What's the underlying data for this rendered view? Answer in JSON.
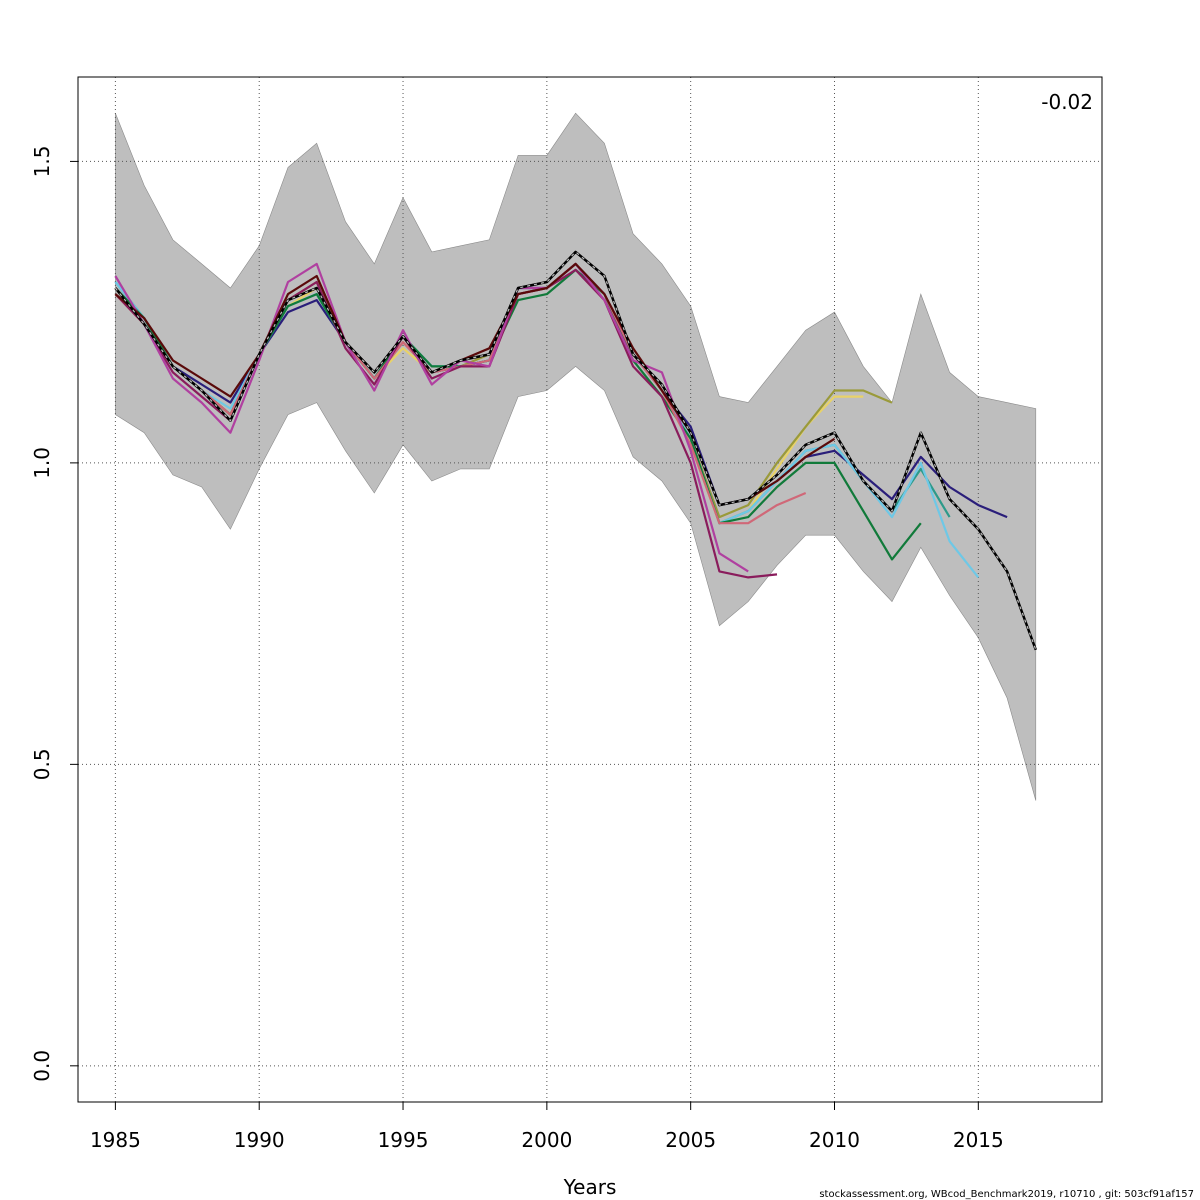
{
  "chart_data": {
    "type": "line",
    "title": "",
    "xlabel": "Years",
    "ylabel": "",
    "xlim": [
      1983.7,
      2019.3
    ],
    "ylim": [
      -0.06,
      1.64
    ],
    "xticks": [
      1985,
      1990,
      1995,
      2000,
      2005,
      2010,
      2015
    ],
    "yticks": [
      0.0,
      0.5,
      1.0,
      1.5
    ],
    "ytick_labels": [
      "0.0",
      "0.5",
      "1.0",
      "1.5"
    ],
    "grid": true,
    "annotation": "-0.02",
    "footer": "stockassessment.org, WBcod_Benchmark2019, r10710 , git: 503cf91af157",
    "band": {
      "color": "#bebebe",
      "years": [
        1985,
        1986,
        1987,
        1988,
        1989,
        1990,
        1991,
        1992,
        1993,
        1994,
        1995,
        1996,
        1997,
        1998,
        1999,
        2000,
        2001,
        2002,
        2003,
        2004,
        2005,
        2006,
        2007,
        2008,
        2009,
        2010,
        2011,
        2012,
        2013,
        2014,
        2015,
        2016,
        2017
      ],
      "upper": [
        1.58,
        1.46,
        1.37,
        1.33,
        1.29,
        1.36,
        1.49,
        1.53,
        1.4,
        1.33,
        1.44,
        1.35,
        1.36,
        1.37,
        1.51,
        1.51,
        1.58,
        1.53,
        1.38,
        1.33,
        1.26,
        1.11,
        1.1,
        1.16,
        1.22,
        1.25,
        1.16,
        1.1,
        1.28,
        1.15,
        1.11,
        1.1,
        1.09
      ],
      "lower": [
        1.08,
        1.05,
        0.98,
        0.96,
        0.89,
        0.99,
        1.08,
        1.1,
        1.02,
        0.95,
        1.03,
        0.97,
        0.99,
        0.99,
        1.11,
        1.12,
        1.16,
        1.12,
        1.01,
        0.97,
        0.9,
        0.73,
        0.77,
        0.83,
        0.88,
        0.88,
        0.82,
        0.77,
        0.86,
        0.78,
        0.71,
        0.61,
        0.44
      ]
    },
    "series": [
      {
        "color": "#e8d268",
        "dashed": false,
        "x": [
          1985,
          1986,
          1987,
          1988,
          1989,
          1990,
          1991,
          1992,
          1993,
          1994,
          1995,
          1996,
          1997,
          1998,
          1999,
          2000,
          2001,
          2002,
          2003,
          2004,
          2005,
          2006,
          2007,
          2008,
          2009,
          2010,
          2011
        ],
        "values": [
          1.28,
          1.23,
          1.16,
          1.12,
          1.09,
          1.18,
          1.26,
          1.29,
          1.2,
          1.14,
          1.19,
          1.15,
          1.17,
          1.18,
          1.28,
          1.29,
          1.33,
          1.28,
          1.18,
          1.12,
          1.03,
          0.9,
          0.92,
          0.99,
          1.06,
          1.11,
          1.11
        ]
      },
      {
        "color": "#9a9a3a",
        "dashed": false,
        "x": [
          1985,
          1986,
          1987,
          1988,
          1989,
          1990,
          1991,
          1992,
          1993,
          1994,
          1995,
          1996,
          1997,
          1998,
          1999,
          2000,
          2001,
          2002,
          2003,
          2004,
          2005,
          2006,
          2007,
          2008,
          2009,
          2010,
          2011,
          2012
        ],
        "values": [
          1.29,
          1.23,
          1.16,
          1.12,
          1.08,
          1.18,
          1.27,
          1.3,
          1.2,
          1.14,
          1.2,
          1.15,
          1.16,
          1.18,
          1.28,
          1.29,
          1.33,
          1.28,
          1.18,
          1.12,
          1.04,
          0.91,
          0.93,
          1.0,
          1.06,
          1.12,
          1.12,
          1.1
        ]
      },
      {
        "color": "#2a1e7a",
        "dashed": false,
        "x": [
          1985,
          1986,
          1987,
          1988,
          1989,
          1990,
          1991,
          1992,
          1993,
          1994,
          1995,
          1996,
          1997,
          1998,
          1999,
          2000,
          2001,
          2002,
          2003,
          2004,
          2005,
          2006,
          2007,
          2008,
          2009,
          2010,
          2011,
          2012,
          2013,
          2014,
          2015,
          2016
        ],
        "values": [
          1.29,
          1.24,
          1.16,
          1.13,
          1.1,
          1.18,
          1.25,
          1.27,
          1.2,
          1.14,
          1.21,
          1.15,
          1.16,
          1.17,
          1.29,
          1.29,
          1.33,
          1.28,
          1.18,
          1.12,
          1.06,
          0.93,
          0.94,
          0.97,
          1.01,
          1.02,
          0.98,
          0.94,
          1.01,
          0.96,
          0.93,
          0.91
        ]
      },
      {
        "color": "#2d9a8a",
        "dashed": false,
        "x": [
          1985,
          1986,
          1987,
          1988,
          1989,
          1990,
          1991,
          1992,
          1993,
          1994,
          1995,
          1996,
          1997,
          1998,
          1999,
          2000,
          2001,
          2002,
          2003,
          2004,
          2005,
          2006,
          2007,
          2008,
          2009,
          2010,
          2011,
          2012,
          2013,
          2014
        ],
        "values": [
          1.3,
          1.24,
          1.16,
          1.12,
          1.08,
          1.18,
          1.26,
          1.28,
          1.2,
          1.14,
          1.21,
          1.16,
          1.16,
          1.17,
          1.28,
          1.29,
          1.33,
          1.28,
          1.18,
          1.12,
          1.04,
          0.9,
          0.92,
          0.97,
          1.02,
          1.03,
          0.97,
          0.92,
          0.99,
          0.91
        ]
      },
      {
        "color": "#6ec8e6",
        "dashed": false,
        "x": [
          1985,
          1986,
          1987,
          1988,
          1989,
          1990,
          1991,
          1992,
          1993,
          1994,
          1995,
          1996,
          1997,
          1998,
          1999,
          2000,
          2001,
          2002,
          2003,
          2004,
          2005,
          2006,
          2007,
          2008,
          2009,
          2010,
          2011,
          2012,
          2013,
          2014,
          2015
        ],
        "values": [
          1.3,
          1.24,
          1.16,
          1.12,
          1.09,
          1.18,
          1.26,
          1.28,
          1.2,
          1.14,
          1.21,
          1.16,
          1.16,
          1.17,
          1.28,
          1.29,
          1.33,
          1.28,
          1.18,
          1.12,
          1.04,
          0.9,
          0.92,
          0.97,
          1.02,
          1.03,
          0.97,
          0.91,
          1.0,
          0.87,
          0.81
        ]
      },
      {
        "color": "#117a3a",
        "dashed": false,
        "x": [
          1985,
          1986,
          1987,
          1988,
          1989,
          1990,
          1991,
          1992,
          1993,
          1994,
          1995,
          1996,
          1997,
          1998,
          1999,
          2000,
          2001,
          2002,
          2003,
          2004,
          2005,
          2006,
          2007,
          2008,
          2009,
          2010,
          2011,
          2012,
          2013
        ],
        "values": [
          1.29,
          1.24,
          1.16,
          1.12,
          1.08,
          1.18,
          1.26,
          1.28,
          1.2,
          1.14,
          1.21,
          1.16,
          1.16,
          1.17,
          1.27,
          1.28,
          1.32,
          1.28,
          1.17,
          1.11,
          1.04,
          0.9,
          0.91,
          0.96,
          1.0,
          1.0,
          0.92,
          0.84,
          0.9
        ]
      },
      {
        "color": "#d06878",
        "dashed": false,
        "x": [
          1985,
          1986,
          1987,
          1988,
          1989,
          1990,
          1991,
          1992,
          1993,
          1994,
          1995,
          1996,
          1997,
          1998,
          1999,
          2000,
          2001,
          2002,
          2003,
          2004,
          2005,
          2006,
          2007,
          2008,
          2009
        ],
        "values": [
          1.29,
          1.23,
          1.16,
          1.12,
          1.08,
          1.18,
          1.27,
          1.29,
          1.2,
          1.14,
          1.2,
          1.15,
          1.16,
          1.17,
          1.28,
          1.29,
          1.33,
          1.28,
          1.18,
          1.12,
          1.03,
          0.9,
          0.9,
          0.93,
          0.95
        ]
      },
      {
        "color": "#8a1c5c",
        "dashed": false,
        "x": [
          1985,
          1986,
          1987,
          1988,
          1989,
          1990,
          1991,
          1992,
          1993,
          1994,
          1995,
          1996,
          1997,
          1998,
          1999,
          2000,
          2001,
          2002,
          2003,
          2004,
          2005,
          2006,
          2007,
          2008
        ],
        "values": [
          1.28,
          1.23,
          1.15,
          1.11,
          1.07,
          1.18,
          1.27,
          1.3,
          1.19,
          1.13,
          1.21,
          1.14,
          1.16,
          1.16,
          1.28,
          1.29,
          1.32,
          1.27,
          1.16,
          1.11,
          1.0,
          0.82,
          0.81,
          0.815
        ]
      },
      {
        "color": "#b040a0",
        "dashed": false,
        "x": [
          1985,
          1986,
          1987,
          1988,
          1989,
          1990,
          1991,
          1992,
          1993,
          1994,
          1995,
          1996,
          1997,
          1998,
          1999,
          2000,
          2001,
          2002,
          2003,
          2004,
          2005,
          2006,
          2007
        ],
        "values": [
          1.31,
          1.23,
          1.14,
          1.1,
          1.05,
          1.17,
          1.3,
          1.33,
          1.2,
          1.12,
          1.22,
          1.13,
          1.17,
          1.16,
          1.29,
          1.29,
          1.33,
          1.27,
          1.17,
          1.15,
          1.02,
          0.85,
          0.82
        ]
      },
      {
        "color": "#5a0a0a",
        "dashed": false,
        "x": [
          1985,
          1986,
          1987,
          1988,
          1989,
          1990,
          1991,
          1992,
          1993,
          1994,
          1995,
          1996,
          1997,
          1998,
          1999,
          2000,
          2001,
          2002,
          2003,
          2004,
          2005,
          2006,
          2007,
          2008,
          2009,
          2010
        ],
        "values": [
          1.28,
          1.24,
          1.17,
          1.14,
          1.11,
          1.18,
          1.28,
          1.31,
          1.2,
          1.15,
          1.21,
          1.15,
          1.17,
          1.19,
          1.28,
          1.29,
          1.33,
          1.28,
          1.19,
          1.12,
          1.05,
          0.93,
          0.94,
          0.97,
          1.01,
          1.04
        ]
      },
      {
        "color": "#000000",
        "dashed": true,
        "x": [
          1985,
          1986,
          1987,
          1988,
          1989,
          1990,
          1991,
          1992,
          1993,
          1994,
          1995,
          1996,
          1997,
          1998,
          1999,
          2000,
          2001,
          2002,
          2003,
          2004,
          2005,
          2006,
          2007,
          2008,
          2009,
          2010,
          2011,
          2012,
          2013,
          2014,
          2015,
          2016,
          2017
        ],
        "values": [
          1.29,
          1.23,
          1.16,
          1.12,
          1.07,
          1.18,
          1.27,
          1.29,
          1.2,
          1.15,
          1.21,
          1.15,
          1.17,
          1.18,
          1.29,
          1.3,
          1.35,
          1.31,
          1.18,
          1.13,
          1.05,
          0.93,
          0.94,
          0.98,
          1.03,
          1.05,
          0.97,
          0.92,
          1.05,
          0.94,
          0.89,
          0.82,
          0.69
        ]
      }
    ]
  }
}
